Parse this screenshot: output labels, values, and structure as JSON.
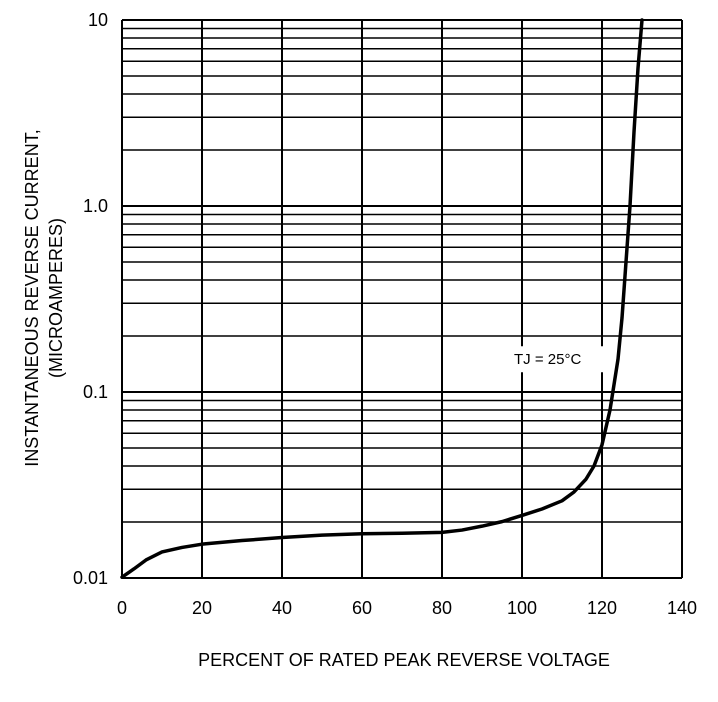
{
  "chart_data": {
    "type": "line",
    "title": "",
    "xlabel": "PERCENT OF RATED PEAK REVERSE VOLTAGE",
    "ylabel_line1": "INSTANTANEOUS REVERSE CURRENT,",
    "ylabel_line2": "(MICROAMPERES)",
    "xlim": [
      0,
      140
    ],
    "ylim": [
      0.01,
      10
    ],
    "yscale": "log",
    "grid": true,
    "x_ticks": [
      {
        "value": 0,
        "label": "0"
      },
      {
        "value": 20,
        "label": "20"
      },
      {
        "value": 40,
        "label": "40"
      },
      {
        "value": 60,
        "label": "60"
      },
      {
        "value": 80,
        "label": "80"
      },
      {
        "value": 100,
        "label": "100"
      },
      {
        "value": 120,
        "label": "120"
      },
      {
        "value": 140,
        "label": "140"
      }
    ],
    "y_ticks": [
      {
        "value": 0.01,
        "label": "0.01"
      },
      {
        "value": 0.1,
        "label": "0.1"
      },
      {
        "value": 1,
        "label": "1.0"
      },
      {
        "value": 10,
        "label": "10"
      }
    ],
    "annotation": {
      "text": "TJ = 25°C",
      "x": 98,
      "y": 0.15
    },
    "series": [
      {
        "x": [
          0,
          3,
          6,
          10,
          15,
          20,
          30,
          40,
          50,
          60,
          70,
          80,
          85,
          90,
          95,
          100,
          105,
          110,
          113,
          116,
          118,
          120,
          122,
          124,
          125,
          126,
          127,
          128,
          129,
          130
        ],
        "y": [
          0.0101,
          0.0112,
          0.0125,
          0.0138,
          0.0146,
          0.0152,
          0.0159,
          0.0165,
          0.017,
          0.0173,
          0.0174,
          0.0176,
          0.0181,
          0.019,
          0.0201,
          0.0217,
          0.0235,
          0.026,
          0.029,
          0.034,
          0.04,
          0.052,
          0.08,
          0.15,
          0.25,
          0.5,
          1.0,
          2.5,
          5.5,
          10
        ]
      }
    ]
  }
}
